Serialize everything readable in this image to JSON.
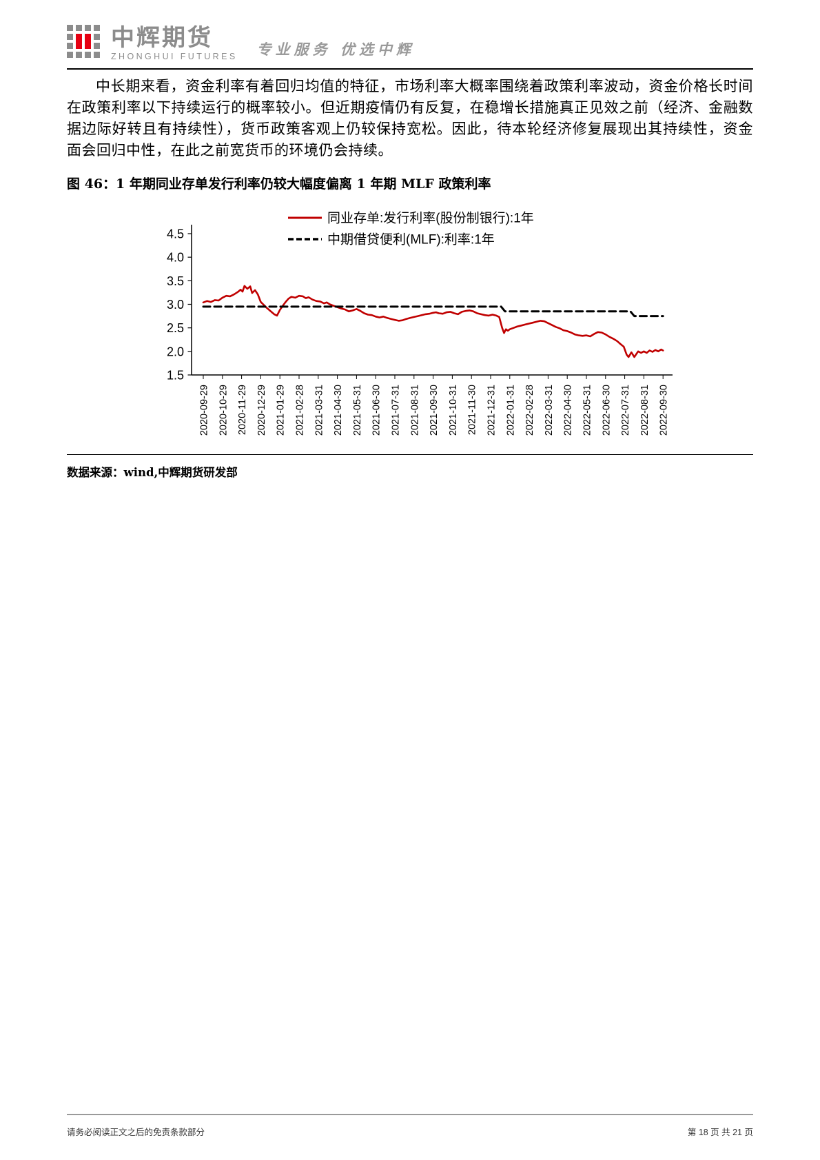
{
  "header": {
    "brand_cn": "中辉期货",
    "brand_en": "ZHONGHUI FUTURES",
    "tagline": "专业服务 优选中辉",
    "colors": {
      "brand_gray": "#8c8c8c",
      "brand_red": "#e60012"
    }
  },
  "body": {
    "paragraph": "中长期来看，资金利率有着回归均值的特征，市场利率大概率围绕着政策利率波动，资金价格长时间在政策利率以下持续运行的概率较小。但近期疫情仍有反复，在稳增长措施真正见效之前（经济、金融数据边际好转且有持续性），货币政策客观上仍较保持宽松。因此，待本轮经济修复展现出其持续性，资金面会回归中性，在此之前宽货币的环境仍会持续。"
  },
  "figure": {
    "title": "图 46：1 年期同业存单发行利率仍较大幅度偏离 1 年期 MLF 政策利率",
    "source_note": "数据来源：wind,中辉期货研发部"
  },
  "chart_data": {
    "type": "line",
    "title": "",
    "xlabel": "",
    "ylabel": "",
    "ylim": [
      1.5,
      4.5
    ],
    "yticks": [
      4.5,
      4.0,
      3.5,
      3.0,
      2.5,
      2.0,
      1.5
    ],
    "grid": false,
    "legend_position": "top-center",
    "x_months_span": 24,
    "x_tick_labels": [
      "2020-09-29",
      "2020-10-29",
      "2020-11-29",
      "2020-12-29",
      "2021-01-29",
      "2021-02-28",
      "2021-03-31",
      "2021-04-30",
      "2021-05-31",
      "2021-06-30",
      "2021-07-31",
      "2021-08-31",
      "2021-09-30",
      "2021-10-31",
      "2021-11-30",
      "2021-12-31",
      "2022-01-31",
      "2022-02-28",
      "2022-03-31",
      "2022-04-30",
      "2022-05-31",
      "2022-06-30",
      "2022-07-31",
      "2022-08-31",
      "2022-09-30"
    ],
    "series": [
      {
        "name": "同业存单:发行利率(股份制银行):1年",
        "color": "#c00000",
        "style": "solid",
        "points": [
          [
            0,
            3.04
          ],
          [
            0.2,
            3.07
          ],
          [
            0.4,
            3.05
          ],
          [
            0.6,
            3.09
          ],
          [
            0.8,
            3.08
          ],
          [
            1.0,
            3.14
          ],
          [
            1.2,
            3.18
          ],
          [
            1.4,
            3.17
          ],
          [
            1.6,
            3.21
          ],
          [
            1.8,
            3.26
          ],
          [
            1.95,
            3.31
          ],
          [
            2.05,
            3.27
          ],
          [
            2.15,
            3.39
          ],
          [
            2.3,
            3.33
          ],
          [
            2.45,
            3.38
          ],
          [
            2.55,
            3.24
          ],
          [
            2.7,
            3.3
          ],
          [
            2.85,
            3.21
          ],
          [
            3.0,
            3.05
          ],
          [
            3.15,
            2.99
          ],
          [
            3.3,
            2.93
          ],
          [
            3.5,
            2.86
          ],
          [
            3.7,
            2.79
          ],
          [
            3.85,
            2.76
          ],
          [
            4.0,
            2.88
          ],
          [
            4.15,
            2.97
          ],
          [
            4.3,
            3.05
          ],
          [
            4.45,
            3.12
          ],
          [
            4.6,
            3.16
          ],
          [
            4.8,
            3.14
          ],
          [
            5.0,
            3.18
          ],
          [
            5.2,
            3.17
          ],
          [
            5.35,
            3.13
          ],
          [
            5.5,
            3.15
          ],
          [
            5.7,
            3.1
          ],
          [
            5.9,
            3.07
          ],
          [
            6.1,
            3.06
          ],
          [
            6.3,
            3.02
          ],
          [
            6.45,
            3.04
          ],
          [
            6.6,
            3.0
          ],
          [
            6.8,
            2.97
          ],
          [
            7.0,
            2.94
          ],
          [
            7.2,
            2.91
          ],
          [
            7.4,
            2.89
          ],
          [
            7.6,
            2.85
          ],
          [
            7.8,
            2.87
          ],
          [
            8.0,
            2.9
          ],
          [
            8.2,
            2.86
          ],
          [
            8.4,
            2.81
          ],
          [
            8.6,
            2.78
          ],
          [
            8.8,
            2.77
          ],
          [
            9.0,
            2.74
          ],
          [
            9.2,
            2.72
          ],
          [
            9.4,
            2.74
          ],
          [
            9.6,
            2.71
          ],
          [
            9.8,
            2.69
          ],
          [
            10.0,
            2.67
          ],
          [
            10.2,
            2.65
          ],
          [
            10.4,
            2.66
          ],
          [
            10.6,
            2.69
          ],
          [
            10.8,
            2.71
          ],
          [
            11.0,
            2.73
          ],
          [
            11.2,
            2.75
          ],
          [
            11.4,
            2.77
          ],
          [
            11.6,
            2.79
          ],
          [
            11.8,
            2.8
          ],
          [
            12.0,
            2.82
          ],
          [
            12.15,
            2.83
          ],
          [
            12.3,
            2.81
          ],
          [
            12.5,
            2.8
          ],
          [
            12.7,
            2.83
          ],
          [
            12.9,
            2.84
          ],
          [
            13.1,
            2.81
          ],
          [
            13.3,
            2.79
          ],
          [
            13.5,
            2.84
          ],
          [
            13.7,
            2.86
          ],
          [
            13.9,
            2.87
          ],
          [
            14.1,
            2.85
          ],
          [
            14.3,
            2.81
          ],
          [
            14.5,
            2.79
          ],
          [
            14.7,
            2.77
          ],
          [
            14.9,
            2.76
          ],
          [
            15.1,
            2.78
          ],
          [
            15.3,
            2.76
          ],
          [
            15.45,
            2.73
          ],
          [
            15.6,
            2.5
          ],
          [
            15.7,
            2.39
          ],
          [
            15.8,
            2.47
          ],
          [
            15.9,
            2.44
          ],
          [
            16.0,
            2.47
          ],
          [
            16.2,
            2.5
          ],
          [
            16.4,
            2.53
          ],
          [
            16.6,
            2.55
          ],
          [
            16.8,
            2.57
          ],
          [
            17.0,
            2.59
          ],
          [
            17.2,
            2.61
          ],
          [
            17.4,
            2.63
          ],
          [
            17.6,
            2.65
          ],
          [
            17.8,
            2.64
          ],
          [
            18.0,
            2.6
          ],
          [
            18.2,
            2.56
          ],
          [
            18.4,
            2.52
          ],
          [
            18.6,
            2.49
          ],
          [
            18.8,
            2.45
          ],
          [
            19.0,
            2.43
          ],
          [
            19.2,
            2.4
          ],
          [
            19.4,
            2.36
          ],
          [
            19.6,
            2.34
          ],
          [
            19.8,
            2.33
          ],
          [
            20.0,
            2.34
          ],
          [
            20.2,
            2.32
          ],
          [
            20.4,
            2.37
          ],
          [
            20.6,
            2.41
          ],
          [
            20.8,
            2.4
          ],
          [
            21.0,
            2.36
          ],
          [
            21.2,
            2.31
          ],
          [
            21.4,
            2.27
          ],
          [
            21.6,
            2.22
          ],
          [
            21.8,
            2.15
          ],
          [
            21.95,
            2.1
          ],
          [
            22.1,
            1.93
          ],
          [
            22.2,
            1.88
          ],
          [
            22.35,
            1.98
          ],
          [
            22.5,
            1.88
          ],
          [
            22.6,
            1.94
          ],
          [
            22.7,
            2.0
          ],
          [
            22.85,
            1.97
          ],
          [
            23.0,
            2.0
          ],
          [
            23.15,
            1.97
          ],
          [
            23.3,
            2.02
          ],
          [
            23.45,
            1.99
          ],
          [
            23.6,
            2.03
          ],
          [
            23.75,
            2.0
          ],
          [
            23.9,
            2.04
          ],
          [
            24,
            2.02
          ]
        ]
      },
      {
        "name": "中期借贷便利(MLF):利率:1年",
        "color": "#000000",
        "style": "dashed",
        "points": [
          [
            0,
            2.95
          ],
          [
            15.55,
            2.95
          ],
          [
            15.75,
            2.85
          ],
          [
            22.3,
            2.85
          ],
          [
            22.5,
            2.75
          ],
          [
            24,
            2.75
          ]
        ]
      }
    ]
  },
  "footer": {
    "disclaimer": "请务必阅读正文之后的免责条款部分",
    "page_info": "第 18 页 共 21 页"
  }
}
